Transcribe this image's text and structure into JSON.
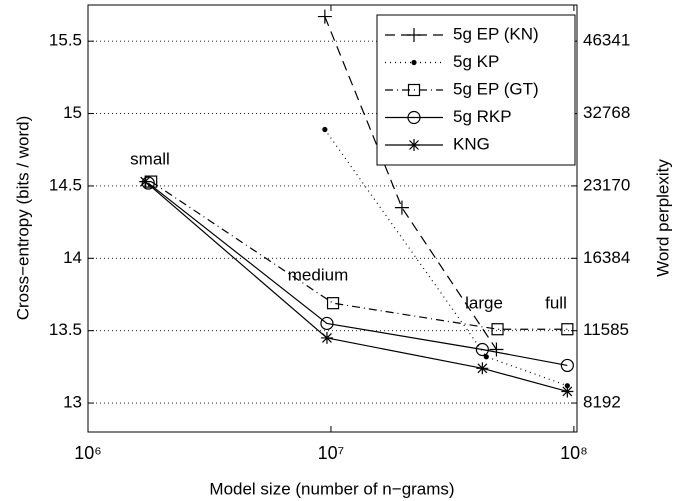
{
  "chart_data": {
    "type": "line",
    "x_label": "Model size (number of n−grams)",
    "y_label": "Cross−entropy (bits / word)",
    "y2_label": "Word perplexity",
    "xscale": "log",
    "y2scale": "log",
    "xlim": [
      1000000,
      103000000
    ],
    "xticks": [
      {
        "value": 1000000,
        "label": "10⁶"
      },
      {
        "value": 10000000,
        "label": "10⁷"
      },
      {
        "value": 100000000,
        "label": "10⁸"
      }
    ],
    "ylim": [
      12.8,
      15.75
    ],
    "yticks": [
      13,
      13.5,
      14,
      14.5,
      15,
      15.5
    ],
    "y2lim": [
      7131,
      55109
    ],
    "y2ticks": [
      8192,
      11585,
      16384,
      23170,
      32768,
      46341
    ],
    "grid": true,
    "legend": "upper right",
    "annotations": [
      "small",
      "medium",
      "large",
      "full"
    ],
    "series": [
      {
        "name": "5g EP (KN)",
        "color": "#000000",
        "style": "dashed",
        "marker": "plus",
        "x": [
          9440000,
          19600000,
          48000000
        ],
        "values": [
          15.67,
          14.35,
          13.37
        ]
      },
      {
        "name": "5g KP",
        "color": "#000000",
        "style": "dotted",
        "marker": "dot",
        "x": [
          9440000,
          43600000,
          94000000
        ],
        "values": [
          14.89,
          13.32,
          13.12
        ]
      },
      {
        "name": "5g EP (GT)",
        "color": "#000000",
        "style": "dashdot",
        "marker": "square",
        "x": [
          1820000,
          10200000,
          48500000,
          94000000
        ],
        "values": [
          14.53,
          13.69,
          13.51,
          13.51
        ]
      },
      {
        "name": "5g RKP",
        "color": "#000000",
        "style": "solid",
        "marker": "circle",
        "x": [
          1770000,
          9630000,
          42000000,
          94000000
        ],
        "values": [
          14.52,
          13.55,
          13.37,
          13.26
        ]
      },
      {
        "name": "KNG",
        "color": "#000000",
        "style": "solid",
        "marker": "star",
        "x": [
          1720000,
          9630000,
          42000000,
          94000000
        ],
        "values": [
          14.53,
          13.45,
          13.24,
          13.08
        ]
      }
    ]
  }
}
